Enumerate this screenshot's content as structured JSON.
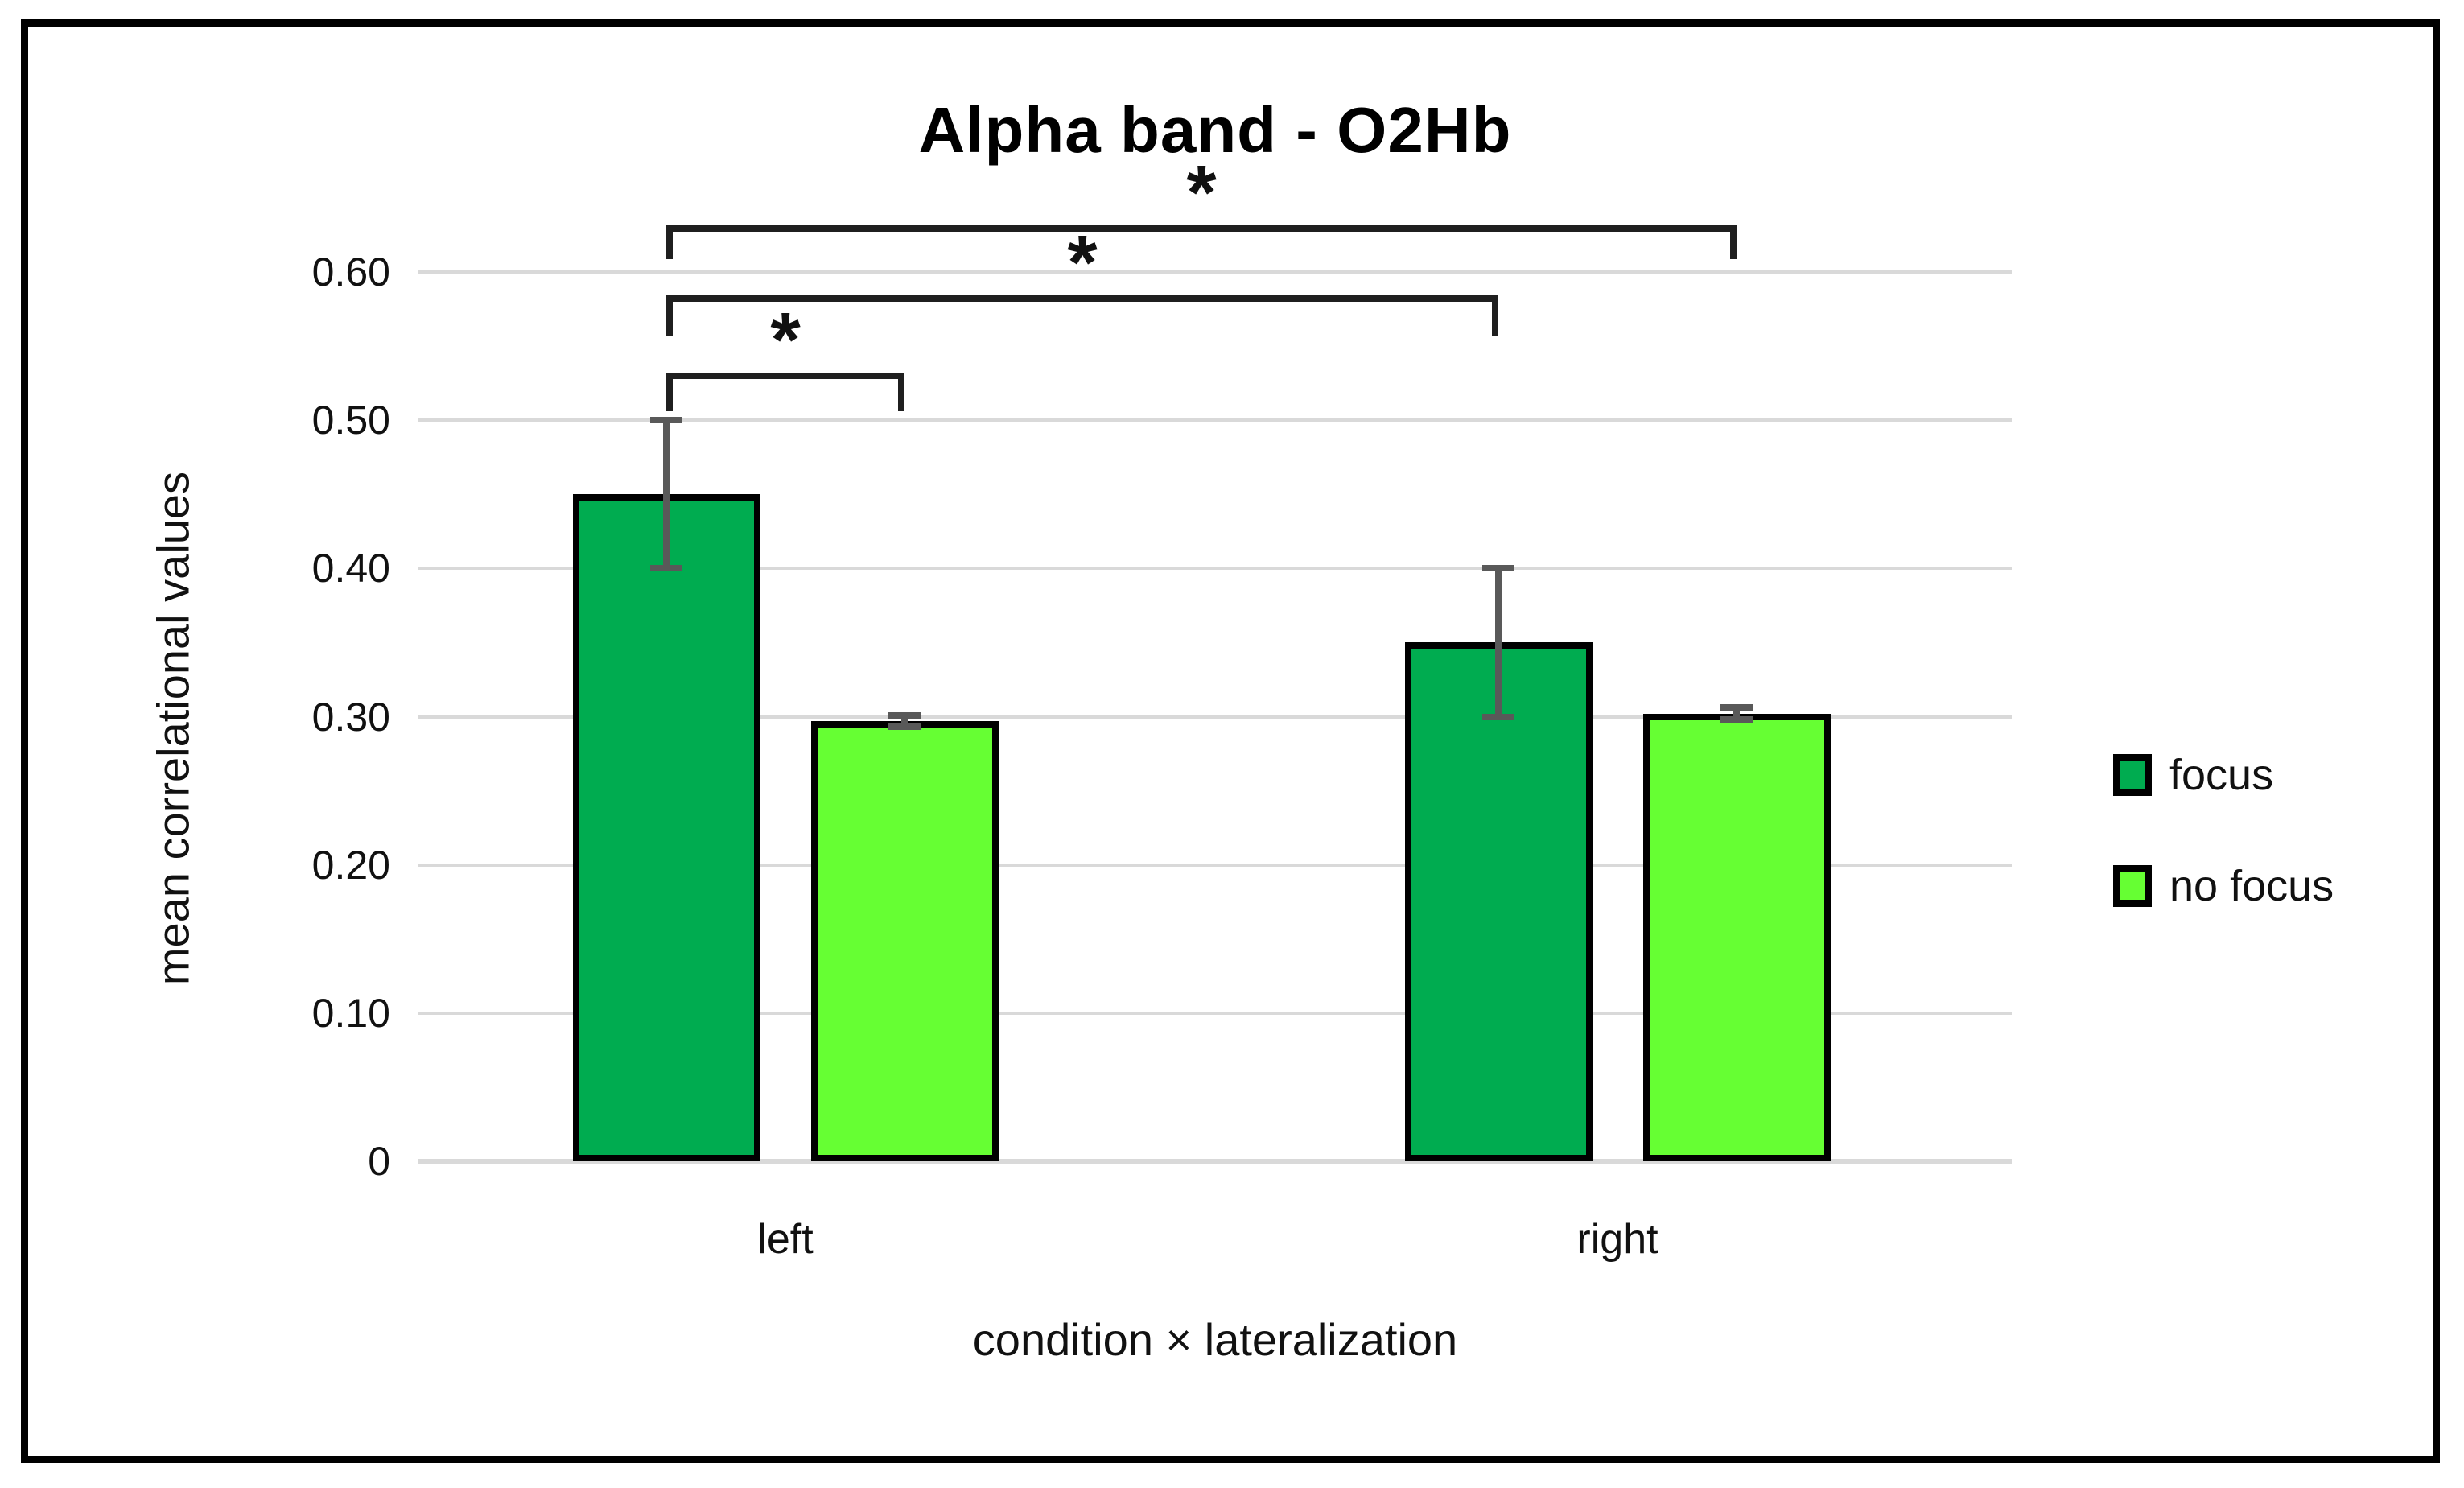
{
  "chart_data": {
    "type": "bar",
    "title": "Alpha band - O2Hb",
    "ylabel": "mean correlational values",
    "xlabel": "condition × lateralization",
    "categories": [
      "left",
      "right"
    ],
    "series": [
      {
        "name": "focus",
        "color": "#00AC50",
        "values": [
          0.45,
          0.35
        ],
        "errors": [
          0.05,
          0.05
        ]
      },
      {
        "name": "no focus",
        "color": "#66FF33",
        "values": [
          0.297,
          0.302
        ],
        "errors": [
          0.004,
          0.004
        ]
      }
    ],
    "ylim": [
      0,
      0.6
    ],
    "yticks": [
      {
        "value": 0.6,
        "label": "0.60"
      },
      {
        "value": 0.5,
        "label": "0.50"
      },
      {
        "value": 0.4,
        "label": "0.40"
      },
      {
        "value": 0.3,
        "label": "0.30"
      },
      {
        "value": 0.2,
        "label": "0.20"
      },
      {
        "value": 0.1,
        "label": "0.10"
      },
      {
        "value": 0,
        "label": "0"
      }
    ],
    "grid": true,
    "legend_position": "right",
    "significance_brackets": [
      {
        "between": [
          [
            "left",
            "focus"
          ],
          [
            "right",
            "no focus"
          ]
        ],
        "label": "*"
      },
      {
        "between": [
          [
            "left",
            "focus"
          ],
          [
            "right",
            "focus"
          ]
        ],
        "label": "*"
      },
      {
        "between": [
          [
            "left",
            "focus"
          ],
          [
            "left",
            "no focus"
          ]
        ],
        "label": "*"
      }
    ],
    "style": {
      "grid_color": "#D9D9D9",
      "error_bar_color": "#595959",
      "bracket_color": "#1F1F1F",
      "bar_border_color": "#000000",
      "text_color": "#111111"
    }
  },
  "legend": {
    "items": [
      {
        "label": "focus"
      },
      {
        "label": "no focus"
      }
    ]
  }
}
